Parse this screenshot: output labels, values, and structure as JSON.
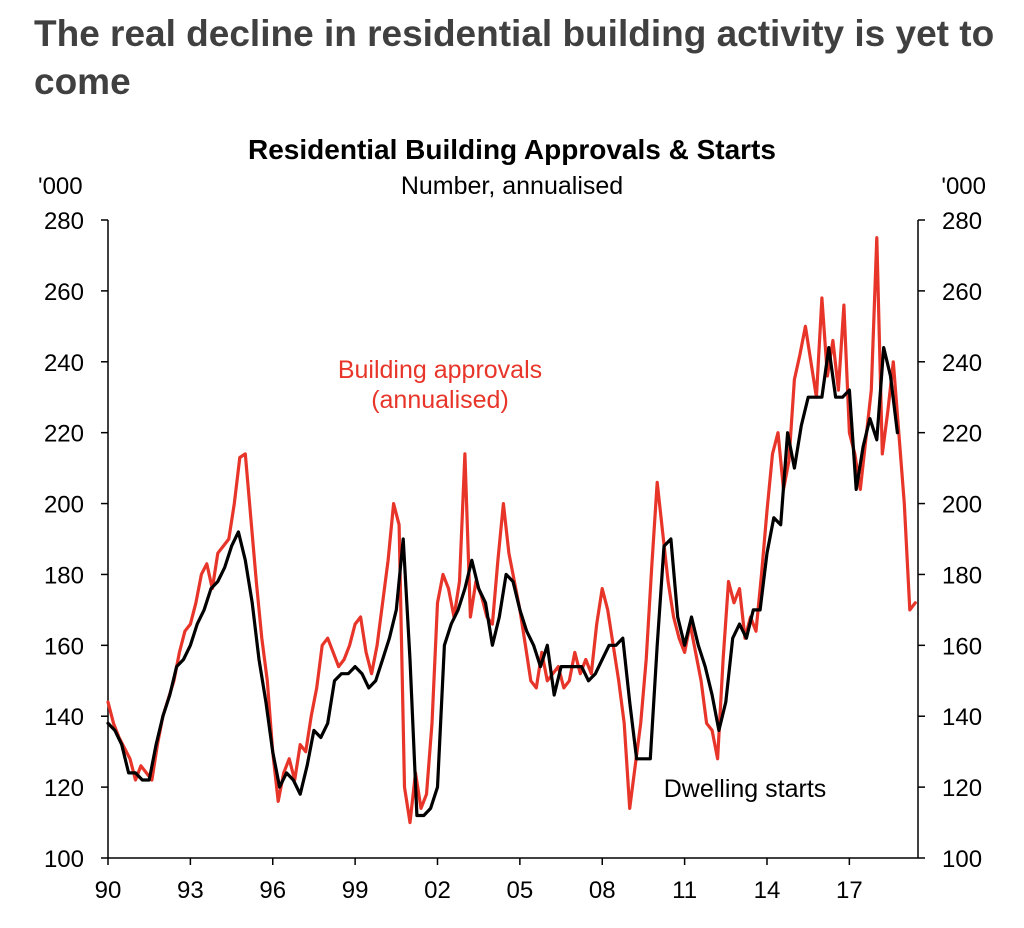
{
  "headline": "The  real decline in residential building activity is yet to come",
  "chart_data": {
    "type": "line",
    "title": "Residential Building Approvals & Starts",
    "subtitle": "Number, annualised",
    "y_unit_left": "'000",
    "y_unit_right": "'000",
    "ylim": [
      100,
      280
    ],
    "y_ticks": [
      "100",
      "120",
      "140",
      "160",
      "180",
      "200",
      "220",
      "240",
      "260",
      "280"
    ],
    "xlim": [
      1990.0,
      2019.5
    ],
    "x_ticks": [
      {
        "value": 1990,
        "label": "90"
      },
      {
        "value": 1993,
        "label": "93"
      },
      {
        "value": 1996,
        "label": "96"
      },
      {
        "value": 1999,
        "label": "99"
      },
      {
        "value": 2002,
        "label": "02"
      },
      {
        "value": 2005,
        "label": "05"
      },
      {
        "value": 2008,
        "label": "08"
      },
      {
        "value": 2011,
        "label": "11"
      },
      {
        "value": 2014,
        "label": "14"
      },
      {
        "value": 2017,
        "label": "17"
      }
    ],
    "grid": false,
    "colors": {
      "approvals": "#e8352a",
      "starts": "#000000",
      "axis": "#000000"
    },
    "series": [
      {
        "name": "Building approvals (annualised)",
        "label_lines": [
          "Building approvals",
          "(annualised)"
        ],
        "points": [
          [
            1990.0,
            144
          ],
          [
            1990.2,
            138
          ],
          [
            1990.4,
            134
          ],
          [
            1990.6,
            131
          ],
          [
            1990.8,
            128
          ],
          [
            1991.0,
            122
          ],
          [
            1991.2,
            126
          ],
          [
            1991.4,
            124
          ],
          [
            1991.6,
            122
          ],
          [
            1991.8,
            132
          ],
          [
            1992.0,
            140
          ],
          [
            1992.2,
            145
          ],
          [
            1992.4,
            150
          ],
          [
            1992.6,
            158
          ],
          [
            1992.8,
            164
          ],
          [
            1993.0,
            166
          ],
          [
            1993.2,
            172
          ],
          [
            1993.4,
            180
          ],
          [
            1993.6,
            183
          ],
          [
            1993.8,
            176
          ],
          [
            1994.0,
            186
          ],
          [
            1994.2,
            188
          ],
          [
            1994.4,
            190
          ],
          [
            1994.6,
            200
          ],
          [
            1994.8,
            213
          ],
          [
            1995.0,
            214
          ],
          [
            1995.2,
            196
          ],
          [
            1995.4,
            178
          ],
          [
            1995.6,
            162
          ],
          [
            1995.8,
            150
          ],
          [
            1996.0,
            130
          ],
          [
            1996.2,
            116
          ],
          [
            1996.4,
            124
          ],
          [
            1996.6,
            128
          ],
          [
            1996.8,
            122
          ],
          [
            1997.0,
            132
          ],
          [
            1997.2,
            130
          ],
          [
            1997.4,
            140
          ],
          [
            1997.6,
            148
          ],
          [
            1997.8,
            160
          ],
          [
            1998.0,
            162
          ],
          [
            1998.2,
            158
          ],
          [
            1998.4,
            154
          ],
          [
            1998.6,
            156
          ],
          [
            1998.8,
            160
          ],
          [
            1999.0,
            166
          ],
          [
            1999.2,
            168
          ],
          [
            1999.4,
            158
          ],
          [
            1999.6,
            152
          ],
          [
            1999.8,
            160
          ],
          [
            2000.0,
            172
          ],
          [
            2000.2,
            184
          ],
          [
            2000.4,
            200
          ],
          [
            2000.6,
            194
          ],
          [
            2000.8,
            120
          ],
          [
            2001.0,
            110
          ],
          [
            2001.2,
            124
          ],
          [
            2001.4,
            114
          ],
          [
            2001.6,
            118
          ],
          [
            2001.8,
            138
          ],
          [
            2002.0,
            172
          ],
          [
            2002.2,
            180
          ],
          [
            2002.4,
            176
          ],
          [
            2002.6,
            168
          ],
          [
            2002.8,
            178
          ],
          [
            2003.0,
            214
          ],
          [
            2003.2,
            168
          ],
          [
            2003.4,
            178
          ],
          [
            2003.6,
            174
          ],
          [
            2003.8,
            168
          ],
          [
            2004.0,
            166
          ],
          [
            2004.2,
            184
          ],
          [
            2004.4,
            200
          ],
          [
            2004.6,
            186
          ],
          [
            2004.8,
            178
          ],
          [
            2005.0,
            170
          ],
          [
            2005.2,
            160
          ],
          [
            2005.4,
            150
          ],
          [
            2005.6,
            148
          ],
          [
            2005.8,
            158
          ],
          [
            2006.0,
            150
          ],
          [
            2006.2,
            152
          ],
          [
            2006.4,
            154
          ],
          [
            2006.6,
            148
          ],
          [
            2006.8,
            150
          ],
          [
            2007.0,
            158
          ],
          [
            2007.2,
            152
          ],
          [
            2007.4,
            156
          ],
          [
            2007.6,
            152
          ],
          [
            2007.8,
            166
          ],
          [
            2008.0,
            176
          ],
          [
            2008.2,
            170
          ],
          [
            2008.4,
            160
          ],
          [
            2008.6,
            150
          ],
          [
            2008.8,
            138
          ],
          [
            2009.0,
            114
          ],
          [
            2009.2,
            126
          ],
          [
            2009.4,
            138
          ],
          [
            2009.6,
            156
          ],
          [
            2009.8,
            182
          ],
          [
            2010.0,
            206
          ],
          [
            2010.2,
            192
          ],
          [
            2010.4,
            178
          ],
          [
            2010.6,
            168
          ],
          [
            2010.8,
            162
          ],
          [
            2011.0,
            158
          ],
          [
            2011.2,
            166
          ],
          [
            2011.4,
            158
          ],
          [
            2011.6,
            150
          ],
          [
            2011.8,
            138
          ],
          [
            2012.0,
            136
          ],
          [
            2012.2,
            128
          ],
          [
            2012.4,
            156
          ],
          [
            2012.6,
            178
          ],
          [
            2012.8,
            172
          ],
          [
            2013.0,
            176
          ],
          [
            2013.2,
            162
          ],
          [
            2013.4,
            168
          ],
          [
            2013.6,
            164
          ],
          [
            2013.8,
            180
          ],
          [
            2014.0,
            198
          ],
          [
            2014.2,
            214
          ],
          [
            2014.4,
            220
          ],
          [
            2014.6,
            204
          ],
          [
            2014.8,
            212
          ],
          [
            2015.0,
            235
          ],
          [
            2015.2,
            242
          ],
          [
            2015.4,
            250
          ],
          [
            2015.6,
            240
          ],
          [
            2015.8,
            230
          ],
          [
            2016.0,
            258
          ],
          [
            2016.2,
            236
          ],
          [
            2016.4,
            246
          ],
          [
            2016.6,
            232
          ],
          [
            2016.8,
            256
          ],
          [
            2017.0,
            220
          ],
          [
            2017.2,
            214
          ],
          [
            2017.4,
            204
          ],
          [
            2017.6,
            218
          ],
          [
            2017.8,
            232
          ],
          [
            2018.0,
            275
          ],
          [
            2018.2,
            214
          ],
          [
            2018.4,
            226
          ],
          [
            2018.6,
            240
          ],
          [
            2018.8,
            220
          ],
          [
            2019.0,
            200
          ],
          [
            2019.2,
            170
          ],
          [
            2019.4,
            172
          ]
        ]
      },
      {
        "name": "Dwelling starts",
        "label_lines": [
          "Dwelling starts"
        ],
        "points": [
          [
            1990.0,
            138
          ],
          [
            1990.25,
            136
          ],
          [
            1990.5,
            132
          ],
          [
            1990.75,
            124
          ],
          [
            1991.0,
            124
          ],
          [
            1991.25,
            122
          ],
          [
            1991.5,
            122
          ],
          [
            1991.75,
            132
          ],
          [
            1992.0,
            140
          ],
          [
            1992.25,
            146
          ],
          [
            1992.5,
            154
          ],
          [
            1992.75,
            156
          ],
          [
            1993.0,
            160
          ],
          [
            1993.25,
            166
          ],
          [
            1993.5,
            170
          ],
          [
            1993.75,
            176
          ],
          [
            1994.0,
            178
          ],
          [
            1994.25,
            182
          ],
          [
            1994.5,
            188
          ],
          [
            1994.75,
            192
          ],
          [
            1995.0,
            184
          ],
          [
            1995.25,
            172
          ],
          [
            1995.5,
            156
          ],
          [
            1995.75,
            144
          ],
          [
            1996.0,
            130
          ],
          [
            1996.25,
            120
          ],
          [
            1996.5,
            124
          ],
          [
            1996.75,
            122
          ],
          [
            1997.0,
            118
          ],
          [
            1997.25,
            126
          ],
          [
            1997.5,
            136
          ],
          [
            1997.75,
            134
          ],
          [
            1998.0,
            138
          ],
          [
            1998.25,
            150
          ],
          [
            1998.5,
            152
          ],
          [
            1998.75,
            152
          ],
          [
            1999.0,
            154
          ],
          [
            1999.25,
            152
          ],
          [
            1999.5,
            148
          ],
          [
            1999.75,
            150
          ],
          [
            2000.0,
            156
          ],
          [
            2000.25,
            162
          ],
          [
            2000.5,
            170
          ],
          [
            2000.75,
            190
          ],
          [
            2001.0,
            156
          ],
          [
            2001.25,
            112
          ],
          [
            2001.5,
            112
          ],
          [
            2001.75,
            114
          ],
          [
            2002.0,
            120
          ],
          [
            2002.25,
            160
          ],
          [
            2002.5,
            166
          ],
          [
            2002.75,
            170
          ],
          [
            2003.0,
            176
          ],
          [
            2003.25,
            184
          ],
          [
            2003.5,
            176
          ],
          [
            2003.75,
            172
          ],
          [
            2004.0,
            160
          ],
          [
            2004.25,
            168
          ],
          [
            2004.5,
            180
          ],
          [
            2004.75,
            178
          ],
          [
            2005.0,
            170
          ],
          [
            2005.25,
            164
          ],
          [
            2005.5,
            160
          ],
          [
            2005.75,
            154
          ],
          [
            2006.0,
            160
          ],
          [
            2006.25,
            146
          ],
          [
            2006.5,
            154
          ],
          [
            2006.75,
            154
          ],
          [
            2007.0,
            154
          ],
          [
            2007.25,
            154
          ],
          [
            2007.5,
            150
          ],
          [
            2007.75,
            152
          ],
          [
            2008.0,
            156
          ],
          [
            2008.25,
            160
          ],
          [
            2008.5,
            160
          ],
          [
            2008.75,
            162
          ],
          [
            2009.0,
            144
          ],
          [
            2009.25,
            128
          ],
          [
            2009.5,
            128
          ],
          [
            2009.75,
            128
          ],
          [
            2010.0,
            160
          ],
          [
            2010.25,
            188
          ],
          [
            2010.5,
            190
          ],
          [
            2010.75,
            168
          ],
          [
            2011.0,
            160
          ],
          [
            2011.25,
            168
          ],
          [
            2011.5,
            160
          ],
          [
            2011.75,
            154
          ],
          [
            2012.0,
            146
          ],
          [
            2012.25,
            136
          ],
          [
            2012.5,
            144
          ],
          [
            2012.75,
            162
          ],
          [
            2013.0,
            166
          ],
          [
            2013.25,
            162
          ],
          [
            2013.5,
            170
          ],
          [
            2013.75,
            170
          ],
          [
            2014.0,
            186
          ],
          [
            2014.25,
            196
          ],
          [
            2014.5,
            194
          ],
          [
            2014.75,
            220
          ],
          [
            2015.0,
            210
          ],
          [
            2015.25,
            222
          ],
          [
            2015.5,
            230
          ],
          [
            2015.75,
            230
          ],
          [
            2016.0,
            230
          ],
          [
            2016.25,
            244
          ],
          [
            2016.5,
            230
          ],
          [
            2016.75,
            230
          ],
          [
            2017.0,
            232
          ],
          [
            2017.25,
            204
          ],
          [
            2017.5,
            216
          ],
          [
            2017.75,
            224
          ],
          [
            2018.0,
            218
          ],
          [
            2018.25,
            244
          ],
          [
            2018.5,
            236
          ],
          [
            2018.75,
            220
          ]
        ]
      }
    ]
  }
}
